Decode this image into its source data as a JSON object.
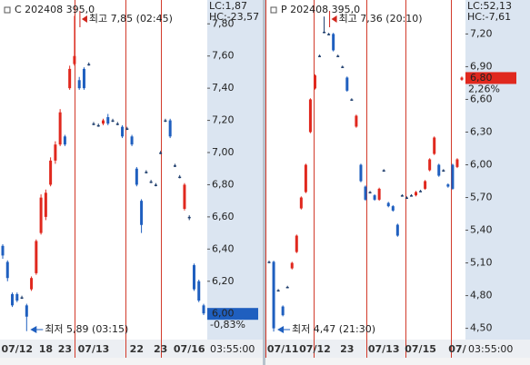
{
  "chart_data": [
    {
      "type": "candlestick",
      "title": "C 202408 395,0",
      "lc": "LC:1,87",
      "hc": "HC:-23,57",
      "high_note": "최고 7,85 (02:45)",
      "low_note": "최저 5,89 (03:15)",
      "last_label": "6,00",
      "change": "-0,83%",
      "time": "03:55:00",
      "up_color": "#e0281e",
      "down_color": "#1f5fbf",
      "ylim": [
        5.86,
        7.92
      ],
      "yticks": [
        {
          "value": 7.8,
          "label": "7,80"
        },
        {
          "value": 7.6,
          "label": "7,60"
        },
        {
          "value": 7.4,
          "label": "7,40"
        },
        {
          "value": 7.2,
          "label": "7,20"
        },
        {
          "value": 7.0,
          "label": "7,00"
        },
        {
          "value": 6.8,
          "label": "6,80"
        },
        {
          "value": 6.6,
          "label": "6,60"
        },
        {
          "value": 6.4,
          "label": "6,40"
        },
        {
          "value": 6.2,
          "label": "6,20"
        }
      ],
      "categories": [
        null,
        null,
        null,
        "07/12",
        null,
        null,
        null,
        null,
        null,
        "18",
        null,
        null,
        null,
        "23",
        null,
        null,
        null,
        null,
        null,
        "07/13",
        null,
        null,
        null,
        null,
        null,
        null,
        null,
        null,
        "22",
        null,
        null,
        null,
        null,
        "23",
        null,
        null,
        null,
        null,
        null,
        "07/16",
        null,
        null,
        null
      ],
      "candles": [
        {
          "o": 6.42,
          "h": 6.43,
          "l": 6.34,
          "c": 6.36
        },
        {
          "o": 6.32,
          "h": 6.33,
          "l": 6.2,
          "c": 6.22
        },
        {
          "o": 6.12,
          "h": 6.13,
          "l": 6.04,
          "c": 6.05
        },
        {
          "o": 6.12,
          "h": 6.13,
          "l": 6.07,
          "c": 6.08
        },
        {
          "o": 6.1,
          "h": 6.11,
          "l": 6.09,
          "c": 6.1
        },
        {
          "o": 6.05,
          "h": 6.06,
          "l": 5.89,
          "c": 5.98
        },
        {
          "o": 6.15,
          "h": 6.23,
          "l": 6.14,
          "c": 6.22
        },
        {
          "o": 6.25,
          "h": 6.46,
          "l": 6.24,
          "c": 6.45
        },
        {
          "o": 6.5,
          "h": 6.74,
          "l": 6.49,
          "c": 6.72
        },
        {
          "o": 6.6,
          "h": 6.77,
          "l": 6.58,
          "c": 6.75
        },
        {
          "o": 6.8,
          "h": 6.97,
          "l": 6.79,
          "c": 6.95
        },
        {
          "o": 6.95,
          "h": 7.07,
          "l": 6.93,
          "c": 7.05
        },
        {
          "o": 7.05,
          "h": 7.27,
          "l": 7.04,
          "c": 7.25
        },
        {
          "o": 7.1,
          "h": 7.11,
          "l": 7.04,
          "c": 7.05
        },
        {
          "o": 7.4,
          "h": 7.54,
          "l": 7.39,
          "c": 7.52
        },
        {
          "o": 7.55,
          "h": 7.85,
          "l": 7.54,
          "c": 7.6
        },
        {
          "o": 7.45,
          "h": 7.47,
          "l": 7.39,
          "c": 7.4
        },
        {
          "o": 7.52,
          "h": 7.53,
          "l": 7.39,
          "c": 7.4
        },
        {
          "o": 7.55,
          "h": 7.56,
          "l": 7.54,
          "c": 7.55
        },
        {
          "o": 7.18,
          "h": 7.19,
          "l": 7.17,
          "c": 7.18
        },
        {
          "o": 7.17,
          "h": 7.18,
          "l": 7.16,
          "c": 7.17
        },
        {
          "o": 7.18,
          "h": 7.21,
          "l": 7.17,
          "c": 7.2
        },
        {
          "o": 7.22,
          "h": 7.24,
          "l": 7.17,
          "c": 7.18
        },
        {
          "o": 7.2,
          "h": 7.21,
          "l": 7.19,
          "c": 7.2
        },
        {
          "o": 7.18,
          "h": 7.19,
          "l": 7.17,
          "c": 7.18
        },
        {
          "o": 7.16,
          "h": 7.17,
          "l": 7.09,
          "c": 7.1
        },
        {
          "o": 7.15,
          "h": 7.16,
          "l": 7.14,
          "c": 7.15
        },
        {
          "o": 7.1,
          "h": 7.11,
          "l": 7.04,
          "c": 7.05
        },
        {
          "o": 6.9,
          "h": 6.91,
          "l": 6.79,
          "c": 6.8
        },
        {
          "o": 6.7,
          "h": 6.71,
          "l": 6.5,
          "c": 6.55
        },
        {
          "o": 6.88,
          "h": 6.89,
          "l": 6.87,
          "c": 6.88
        },
        {
          "o": 6.82,
          "h": 6.83,
          "l": 6.81,
          "c": 6.82
        },
        {
          "o": 6.8,
          "h": 6.81,
          "l": 6.79,
          "c": 6.8
        },
        {
          "o": 7.0,
          "h": 7.01,
          "l": 6.99,
          "c": 7.0
        },
        {
          "o": 7.2,
          "h": 7.21,
          "l": 7.19,
          "c": 7.2
        },
        {
          "o": 7.2,
          "h": 7.21,
          "l": 7.09,
          "c": 7.1
        },
        {
          "o": 6.92,
          "h": 6.93,
          "l": 6.91,
          "c": 6.92
        },
        {
          "o": 6.85,
          "h": 6.86,
          "l": 6.84,
          "c": 6.85
        },
        {
          "o": 6.65,
          "h": 6.81,
          "l": 6.64,
          "c": 6.8
        },
        {
          "o": 6.6,
          "h": 6.61,
          "l": 6.58,
          "c": 6.6
        },
        {
          "o": 6.3,
          "h": 6.31,
          "l": 6.14,
          "c": 6.15
        },
        {
          "o": 6.2,
          "h": 6.21,
          "l": 6.07,
          "c": 6.08
        },
        {
          "o": 6.05,
          "h": 6.06,
          "l": 5.99,
          "c": 6.0
        }
      ]
    },
    {
      "type": "candlestick",
      "title": "P 202408 395,0",
      "lc": "LC:52,13",
      "hc": "HC:-7,61",
      "high_note": "최고 7,36 (20:10)",
      "low_note": "최저 4,47 (21:30)",
      "last_label": "6,80",
      "change": "2,26%",
      "time": "03:55:00",
      "up_color": "#e0281e",
      "down_color": "#1f5fbf",
      "ylim": [
        4.43,
        7.47
      ],
      "yticks": [
        {
          "value": 7.2,
          "label": "7,20"
        },
        {
          "value": 6.9,
          "label": "6,90"
        },
        {
          "value": 6.6,
          "label": "6,60"
        },
        {
          "value": 6.3,
          "label": "6,30"
        },
        {
          "value": 6.0,
          "label": "6,00"
        },
        {
          "value": 5.7,
          "label": "5,70"
        },
        {
          "value": 5.4,
          "label": "5,40"
        },
        {
          "value": 5.1,
          "label": "5,10"
        },
        {
          "value": 4.8,
          "label": "4,80"
        },
        {
          "value": 4.5,
          "label": "4,50"
        }
      ],
      "categories": [
        null,
        null,
        null,
        "07/11",
        null,
        null,
        null,
        null,
        null,
        null,
        "07/12",
        null,
        null,
        null,
        null,
        null,
        null,
        "23",
        null,
        null,
        null,
        null,
        null,
        null,
        null,
        "07/13",
        null,
        null,
        null,
        null,
        null,
        null,
        null,
        "07/15",
        null,
        null,
        null,
        null,
        null,
        null,
        null,
        "07/",
        null
      ],
      "candles": [
        {
          "o": 5.11,
          "h": 5.12,
          "l": 5.1,
          "c": 5.11
        },
        {
          "o": 5.11,
          "h": 5.12,
          "l": 4.47,
          "c": 4.5
        },
        {
          "o": 4.85,
          "h": 4.86,
          "l": 4.84,
          "c": 4.85
        },
        {
          "o": 4.7,
          "h": 4.71,
          "l": 4.61,
          "c": 4.62
        },
        {
          "o": 4.88,
          "h": 4.89,
          "l": 4.87,
          "c": 4.88
        },
        {
          "o": 5.05,
          "h": 5.11,
          "l": 5.04,
          "c": 5.1
        },
        {
          "o": 5.2,
          "h": 5.36,
          "l": 5.19,
          "c": 5.35
        },
        {
          "o": 5.6,
          "h": 5.71,
          "l": 5.59,
          "c": 5.7
        },
        {
          "o": 5.75,
          "h": 6.01,
          "l": 5.74,
          "c": 6.0
        },
        {
          "o": 6.3,
          "h": 6.61,
          "l": 6.29,
          "c": 6.6
        },
        {
          "o": 6.7,
          "h": 6.83,
          "l": 6.69,
          "c": 6.82
        },
        {
          "o": 7.0,
          "h": 7.01,
          "l": 6.99,
          "c": 7.0
        },
        {
          "o": 7.22,
          "h": 7.36,
          "l": 7.21,
          "c": 7.22
        },
        {
          "o": 7.2,
          "h": 7.21,
          "l": 7.19,
          "c": 7.2
        },
        {
          "o": 7.2,
          "h": 7.21,
          "l": 7.04,
          "c": 7.05
        },
        {
          "o": 7.0,
          "h": 7.01,
          "l": 6.99,
          "c": 7.0
        },
        {
          "o": 6.9,
          "h": 6.91,
          "l": 6.89,
          "c": 6.9
        },
        {
          "o": 6.8,
          "h": 6.81,
          "l": 6.67,
          "c": 6.68
        },
        {
          "o": 6.6,
          "h": 6.61,
          "l": 6.59,
          "c": 6.6
        },
        {
          "o": 6.35,
          "h": 6.46,
          "l": 6.34,
          "c": 6.45
        },
        {
          "o": 6.0,
          "h": 6.01,
          "l": 5.84,
          "c": 5.85
        },
        {
          "o": 5.8,
          "h": 5.81,
          "l": 5.67,
          "c": 5.68
        },
        {
          "o": 5.75,
          "h": 5.76,
          "l": 5.74,
          "c": 5.75
        },
        {
          "o": 5.72,
          "h": 5.73,
          "l": 5.67,
          "c": 5.68
        },
        {
          "o": 5.68,
          "h": 5.79,
          "l": 5.67,
          "c": 5.78
        },
        {
          "o": 5.95,
          "h": 5.96,
          "l": 5.94,
          "c": 5.95
        },
        {
          "o": 5.65,
          "h": 5.66,
          "l": 5.61,
          "c": 5.62
        },
        {
          "o": 5.62,
          "h": 5.63,
          "l": 5.57,
          "c": 5.58
        },
        {
          "o": 5.45,
          "h": 5.46,
          "l": 5.34,
          "c": 5.35
        },
        {
          "o": 5.72,
          "h": 5.73,
          "l": 5.71,
          "c": 5.72
        },
        {
          "o": 5.7,
          "h": 5.71,
          "l": 5.69,
          "c": 5.7
        },
        {
          "o": 5.72,
          "h": 5.73,
          "l": 5.71,
          "c": 5.72
        },
        {
          "o": 5.72,
          "h": 5.76,
          "l": 5.71,
          "c": 5.75
        },
        {
          "o": 5.76,
          "h": 5.77,
          "l": 5.75,
          "c": 5.76
        },
        {
          "o": 5.78,
          "h": 5.86,
          "l": 5.77,
          "c": 5.85
        },
        {
          "o": 5.95,
          "h": 6.06,
          "l": 5.94,
          "c": 6.05
        },
        {
          "o": 6.1,
          "h": 6.26,
          "l": 6.09,
          "c": 6.25
        },
        {
          "o": 6.0,
          "h": 6.01,
          "l": 5.89,
          "c": 5.9
        },
        {
          "o": 5.95,
          "h": 5.96,
          "l": 5.94,
          "c": 5.95
        },
        {
          "o": 5.82,
          "h": 5.83,
          "l": 5.79,
          "c": 5.8
        },
        {
          "o": 6.0,
          "h": 6.01,
          "l": 5.77,
          "c": 5.78
        },
        {
          "o": 5.98,
          "h": 6.06,
          "l": 5.97,
          "c": 6.05
        },
        {
          "o": 6.78,
          "h": 6.81,
          "l": 6.77,
          "c": 6.8
        }
      ]
    }
  ]
}
